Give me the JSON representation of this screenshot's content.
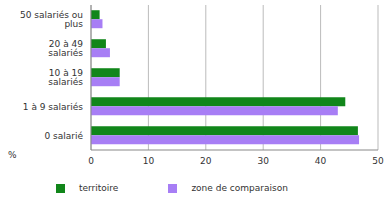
{
  "chart_data": {
    "type": "bar",
    "orientation": "horizontal",
    "categories": [
      "50 salariés ou plus",
      "20 à 49 salariés",
      "10 à 19 salariés",
      "1 à 9 salariés",
      "0 salarié"
    ],
    "series": [
      {
        "name": "territoire",
        "color": "#11861a",
        "values": [
          1.5,
          2.6,
          5.0,
          44.3,
          46.5
        ]
      },
      {
        "name": "zone de comparaison",
        "color": "#a77ef5",
        "values": [
          2.0,
          3.3,
          5.0,
          43.0,
          46.7
        ]
      }
    ],
    "xlabel": "%",
    "xlim": [
      0,
      50
    ],
    "xticks": [
      0,
      10,
      20,
      30,
      40,
      50
    ],
    "grid": true,
    "legend": "bottom"
  }
}
